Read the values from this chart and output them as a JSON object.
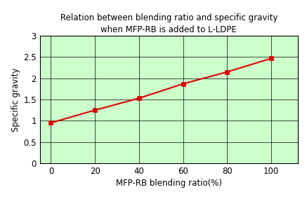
{
  "title_line1": "Relation between blending ratio and specific gravity",
  "title_line2": "when MFP-RB is added to L-LDPE",
  "xlabel": "MFP-RB blending ratio(%)",
  "ylabel": "Specific gravity",
  "x_values": [
    0,
    20,
    40,
    60,
    80,
    100
  ],
  "y_values": [
    0.95,
    1.25,
    1.53,
    1.87,
    2.15,
    2.47
  ],
  "xlim": [
    -5,
    112
  ],
  "ylim": [
    0,
    3.0
  ],
  "xticks": [
    0,
    20,
    40,
    60,
    80,
    100
  ],
  "yticks": [
    0,
    0.5,
    1.0,
    1.5,
    2.0,
    2.5,
    3.0
  ],
  "line_color": "#dd0000",
  "marker_color": "#dd0000",
  "marker": "s",
  "marker_size": 5,
  "bg_color": "#ccffcc",
  "fig_bg_color": "#ffffff",
  "title_fontsize": 8.5,
  "label_fontsize": 8.5,
  "tick_fontsize": 8.5,
  "grid_color": "#000000",
  "grid_linewidth": 0.5,
  "line_width": 1.5
}
